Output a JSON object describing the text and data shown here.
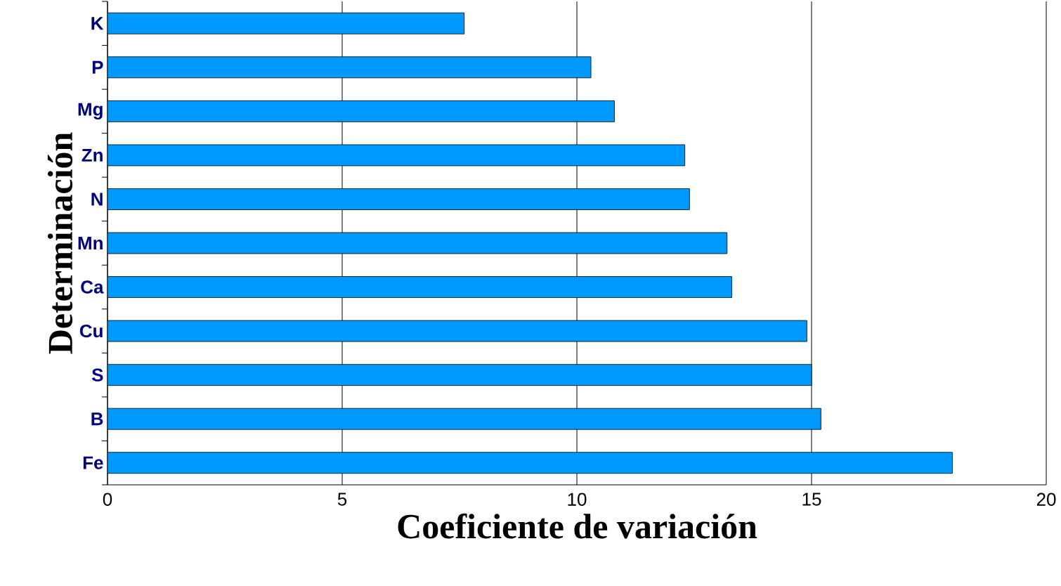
{
  "chart_data": {
    "type": "bar",
    "orientation": "horizontal",
    "xlabel": "Coeficiente de variación",
    "ylabel": "Determinación",
    "categories": [
      "K",
      "P",
      "Mg",
      "Zn",
      "N",
      "Mn",
      "Ca",
      "Cu",
      "S",
      "B",
      "Fe"
    ],
    "values": [
      7.6,
      10.3,
      10.8,
      12.3,
      12.4,
      13.2,
      13.3,
      14.9,
      15.0,
      15.2,
      18.0
    ],
    "color": "#0099ff",
    "xlim": [
      0,
      20
    ],
    "xticks": [
      0,
      5,
      10,
      15,
      20
    ],
    "grid": "x"
  }
}
